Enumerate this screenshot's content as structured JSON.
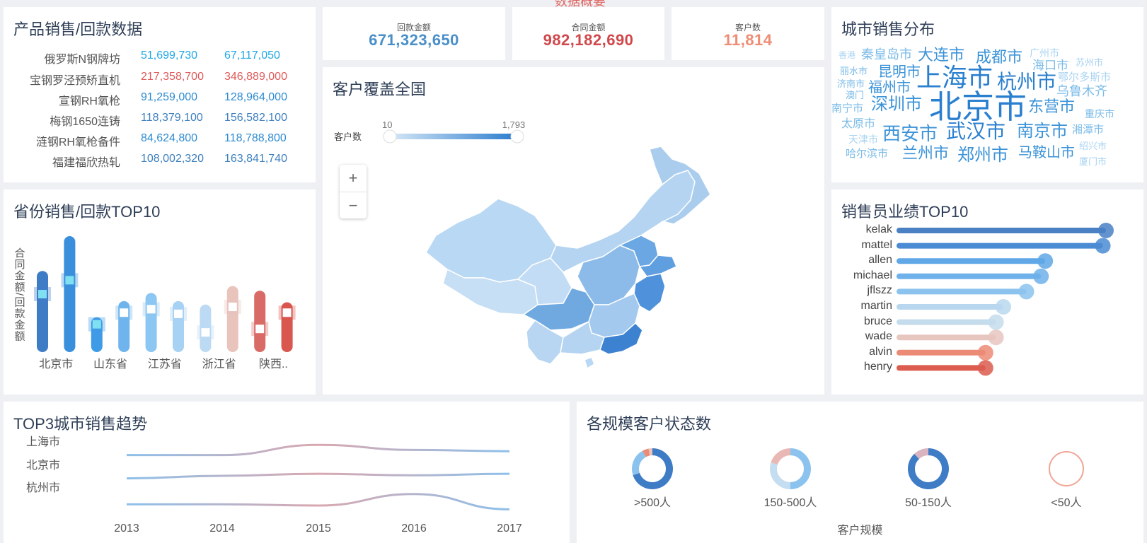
{
  "header_fragment": "数据概要",
  "product_panel": {
    "title": "产品销售/回款数据",
    "rows": [
      {
        "name": "俄罗斯N钢牌坊",
        "v1": "51,699,730",
        "v2": "67,117,050",
        "color": "#1fa7e6"
      },
      {
        "name": "宝钢罗泾预矫直机",
        "v1": "217,358,700",
        "v2": "346,889,000",
        "color": "#e05a5a"
      },
      {
        "name": "宣钢RH氧枪",
        "v1": "91,259,000",
        "v2": "128,964,000",
        "color": "#2e8cd1"
      },
      {
        "name": "梅钢1650连铸",
        "v1": "118,379,100",
        "v2": "156,582,100",
        "color": "#3d7fbf"
      },
      {
        "name": "涟钢RH氧枪备件",
        "v1": "84,624,800",
        "v2": "118,788,800",
        "color": "#2e8cd1"
      },
      {
        "name": "福建福欣热轧",
        "v1": "108,002,320",
        "v2": "163,841,740",
        "color": "#3d7fbf"
      }
    ]
  },
  "kpis": [
    {
      "label": "回款金额",
      "value": "671,323,650",
      "color": "#4a8fc8"
    },
    {
      "label": "合同金额",
      "value": "982,182,690",
      "color": "#d0484b"
    },
    {
      "label": "客户数",
      "value": "11,814",
      "color": "#ef8c74"
    }
  ],
  "map_panel": {
    "title": "客户覆盖全国",
    "legend_label": "客户数",
    "legend_min": "10",
    "legend_max": "1,793",
    "zoom_in": "+",
    "zoom_out": "−"
  },
  "city_cloud": {
    "title": "城市销售分布",
    "words": [
      {
        "text": "香港",
        "size": 12,
        "color": "#a9d3f2"
      },
      {
        "text": "秦皇岛市",
        "size": 18,
        "color": "#7bbbe8"
      },
      {
        "text": "大连市",
        "size": 22,
        "color": "#3b93d8"
      },
      {
        "text": "成都市",
        "size": 22,
        "color": "#3b93d8"
      },
      {
        "text": "广州市",
        "size": 14,
        "color": "#a9d3f2"
      },
      {
        "text": "苏州市",
        "size": 13,
        "color": "#a9d3f2"
      },
      {
        "text": "丽水市",
        "size": 13,
        "color": "#7bbbe8"
      },
      {
        "text": "昆明市",
        "size": 20,
        "color": "#3b93d8"
      },
      {
        "text": "上海市",
        "size": 36,
        "color": "#2a7fcf"
      },
      {
        "text": "杭州市",
        "size": 28,
        "color": "#2a7fcf"
      },
      {
        "text": "海口市",
        "size": 17,
        "color": "#7bbbe8"
      },
      {
        "text": "鄂尔多斯市",
        "size": 15,
        "color": "#a9d3f2"
      },
      {
        "text": "济南市",
        "size": 13,
        "color": "#7bbbe8"
      },
      {
        "text": "福州市",
        "size": 20,
        "color": "#3b93d8"
      },
      {
        "text": "乌鲁木齐",
        "size": 18,
        "color": "#7bbbe8"
      },
      {
        "text": "澳门",
        "size": 13,
        "color": "#7bbbe8"
      },
      {
        "text": "南宁市",
        "size": 15,
        "color": "#7bbbe8"
      },
      {
        "text": "深圳市",
        "size": 24,
        "color": "#3b93d8"
      },
      {
        "text": "北京市",
        "size": 46,
        "color": "#2a7fcf"
      },
      {
        "text": "东营市",
        "size": 22,
        "color": "#3b93d8"
      },
      {
        "text": "重庆市",
        "size": 14,
        "color": "#7bbbe8"
      },
      {
        "text": "太原市",
        "size": 16,
        "color": "#7bbbe8"
      },
      {
        "text": "西安市",
        "size": 26,
        "color": "#3b93d8"
      },
      {
        "text": "武汉市",
        "size": 28,
        "color": "#2a7fcf"
      },
      {
        "text": "南京市",
        "size": 24,
        "color": "#3b93d8"
      },
      {
        "text": "湘潭市",
        "size": 15,
        "color": "#7bbbe8"
      },
      {
        "text": "天津市",
        "size": 14,
        "color": "#a9d3f2"
      },
      {
        "text": "绍兴市",
        "size": 13,
        "color": "#a9d3f2"
      },
      {
        "text": "哈尔滨市",
        "size": 15,
        "color": "#7bbbe8"
      },
      {
        "text": "兰州市",
        "size": 22,
        "color": "#3b93d8"
      },
      {
        "text": "郑州市",
        "size": 24,
        "color": "#3b93d8"
      },
      {
        "text": "马鞍山市",
        "size": 20,
        "color": "#3b93d8"
      },
      {
        "text": "厦门市",
        "size": 13,
        "color": "#a9d3f2"
      }
    ]
  },
  "province_chart": {
    "title": "省份销售/回款TOP10",
    "ylabel": "合同金额/回款金额",
    "x_tick_labels": [
      "北京市",
      "山东省",
      "江苏省",
      "浙江省",
      "陕西.."
    ]
  },
  "salesperson_chart": {
    "title": "销售员业绩TOP10"
  },
  "trend_chart": {
    "title": "TOP3城市销售趋势"
  },
  "customer_status": {
    "title": "各规模客户状态数",
    "xlabel": "客户规模"
  },
  "chart_data": [
    {
      "type": "bar",
      "title": "省份销售/回款TOP10",
      "ylabel": "合同金额/回款金额",
      "categories": [
        "北京市",
        "",
        "山东省",
        "",
        "江苏省",
        "",
        "浙江省",
        "",
        "陕西..",
        ""
      ],
      "series": [
        {
          "values": [
            0.7,
            1.0,
            0.3,
            0.44,
            0.51,
            0.44,
            0.41,
            0.57,
            0.53,
            0.43
          ]
        },
        {
          "values": [
            0.5,
            0.62,
            0.24,
            0.34,
            0.37,
            0.33,
            0.17,
            0.39,
            0.2,
            0.34
          ]
        }
      ],
      "colors": [
        "#3f7cc6",
        "#3a8fdc",
        "#3f9be6",
        "#6fb4ec",
        "#8cc6f2",
        "#a8d2f3",
        "#bcdaf3",
        "#e9c4bd",
        "#d96b66",
        "#d9574f"
      ]
    },
    {
      "type": "bar",
      "title": "销售员业绩TOP10",
      "orientation": "horizontal",
      "categories": [
        "kelak",
        "mattel",
        "allen",
        "michael",
        "jflszz",
        "martin",
        "bruce",
        "wade",
        "alvin",
        "henry"
      ],
      "values": [
        100,
        98.5,
        71,
        69,
        62,
        51,
        47.5,
        47.5,
        42.5,
        42.5
      ],
      "colors": [
        "#4a80c4",
        "#4a8bd3",
        "#5fa7e6",
        "#6fb1ea",
        "#8cc3ee",
        "#b8d7ee",
        "#c4dcec",
        "#e8c6c0",
        "#ec8b75",
        "#dc5c4f"
      ]
    },
    {
      "type": "line",
      "title": "TOP3城市销售趋势",
      "x": [
        "2013",
        "2014",
        "2015",
        "2016",
        "2017"
      ],
      "series": [
        {
          "name": "上海市",
          "values": [
            0.4,
            0.4,
            0.8,
            0.6,
            0.55
          ]
        },
        {
          "name": "北京市",
          "values": [
            0.4,
            0.5,
            0.58,
            0.52,
            0.58
          ]
        },
        {
          "name": "杭州市",
          "values": [
            0.55,
            0.55,
            0.5,
            0.95,
            0.35
          ]
        }
      ]
    },
    {
      "type": "pie",
      "title": "各规模客户状态数",
      "xlabel": "客户规模",
      "categories": [
        ">500人",
        "150-500人",
        "50-150人",
        "<50人"
      ],
      "series": [
        {
          "name": ">500人",
          "slices": [
            0.7,
            0.22,
            0.05,
            0.03
          ],
          "colors": [
            "#3f7cc6",
            "#8cc3ee",
            "#ec8b75",
            "#e9c4bd"
          ]
        },
        {
          "name": "150-500人",
          "slices": [
            0.5,
            0.3,
            0.2
          ],
          "colors": [
            "#8cc3ee",
            "#c5ddf0",
            "#e9b8b4"
          ]
        },
        {
          "name": "50-150人",
          "slices": [
            0.88,
            0.12
          ],
          "colors": [
            "#3f7cc6",
            "#d9b4c0"
          ]
        },
        {
          "name": "<50人",
          "slices": [
            1.0
          ],
          "colors": [
            "#f0a696"
          ]
        }
      ]
    }
  ]
}
